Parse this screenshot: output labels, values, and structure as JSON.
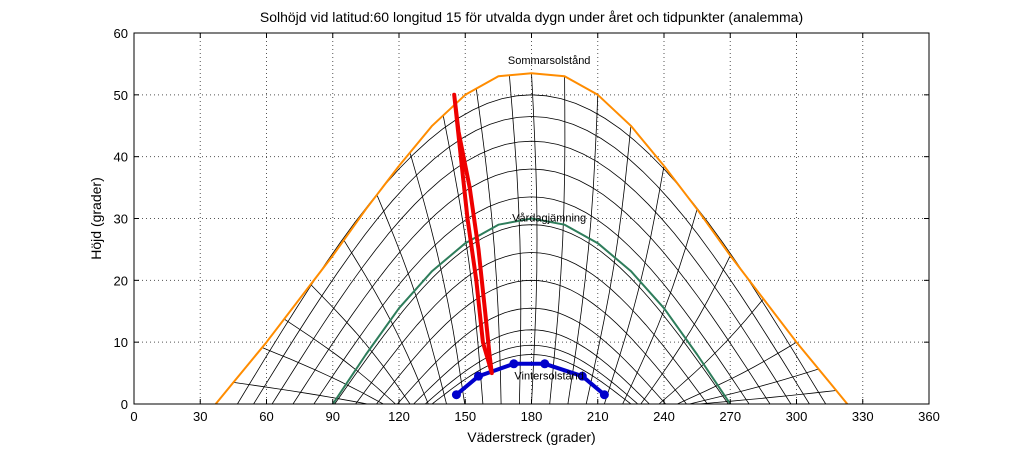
{
  "chart_data": {
    "type": "line",
    "title": "Solhöjd vid latitud:60 longitud 15 för utvalda dygn under året och tidpunkter (analemma)",
    "xlabel": "Väderstreck (grader)",
    "ylabel": "Höjd (grader)",
    "xlim": [
      0,
      360
    ],
    "ylim": [
      0,
      60
    ],
    "xticks": [
      0,
      30,
      60,
      90,
      120,
      150,
      180,
      210,
      240,
      270,
      300,
      330,
      360
    ],
    "yticks": [
      0,
      10,
      20,
      30,
      40,
      50,
      60
    ],
    "grid": true,
    "annotations": [
      {
        "text": "Sommarsolstånd",
        "x": 188,
        "y": 55
      },
      {
        "text": "Vårdagjämning",
        "x": 188,
        "y": 29.5
      },
      {
        "text": "Vintersolstånd",
        "x": 188,
        "y": 4
      }
    ],
    "series": [
      {
        "name": "Sommarsolstånd",
        "color": "#ff8c00",
        "x": [
          37,
          45,
          60,
          75,
          90,
          105,
          120,
          135,
          150,
          165,
          180,
          195,
          210,
          225,
          240,
          255,
          270,
          285,
          300,
          315,
          323
        ],
        "y": [
          0,
          3.5,
          10,
          17,
          24,
          31.5,
          38.5,
          45,
          50,
          53,
          53.5,
          53,
          50,
          45,
          38.5,
          31.5,
          24,
          17,
          10,
          3.5,
          0
        ]
      },
      {
        "name": "Vårdagjämning",
        "color": "#2e7d5b",
        "x": [
          90,
          105,
          120,
          135,
          150,
          165,
          180,
          195,
          210,
          225,
          240,
          255,
          270
        ],
        "y": [
          0,
          8,
          15.5,
          21.5,
          26,
          29,
          30,
          29,
          26,
          21.5,
          15.5,
          8,
          0
        ]
      },
      {
        "name": "Vintersolstånd",
        "color": "#0000cc",
        "x": [
          146,
          156,
          172,
          186,
          203,
          213
        ],
        "y": [
          1.5,
          4.5,
          6.5,
          6.5,
          4.5,
          1.5
        ]
      },
      {
        "name": "Analemma",
        "color": "#ee0000",
        "x": [
          145,
          147,
          152,
          156,
          159,
          161,
          162,
          158,
          155,
          151,
          148,
          145
        ],
        "y": [
          50,
          44,
          35,
          25,
          15,
          8,
          5,
          10,
          20,
          30,
          40,
          50
        ]
      }
    ],
    "background_curves": {
      "description": "Black family of daily sun paths and hour lines",
      "day_paths_max_altitude": [
        50,
        46.5,
        42.5,
        38,
        33.5,
        29,
        24.5,
        20,
        15.5,
        12,
        9.5,
        8
      ],
      "hour_line_azimuths_at_noon_curve": [
        45,
        58,
        68,
        80,
        95,
        110,
        125,
        140,
        155,
        170,
        180,
        195,
        210,
        225,
        240,
        255,
        270,
        285,
        300,
        310,
        318
      ]
    }
  }
}
